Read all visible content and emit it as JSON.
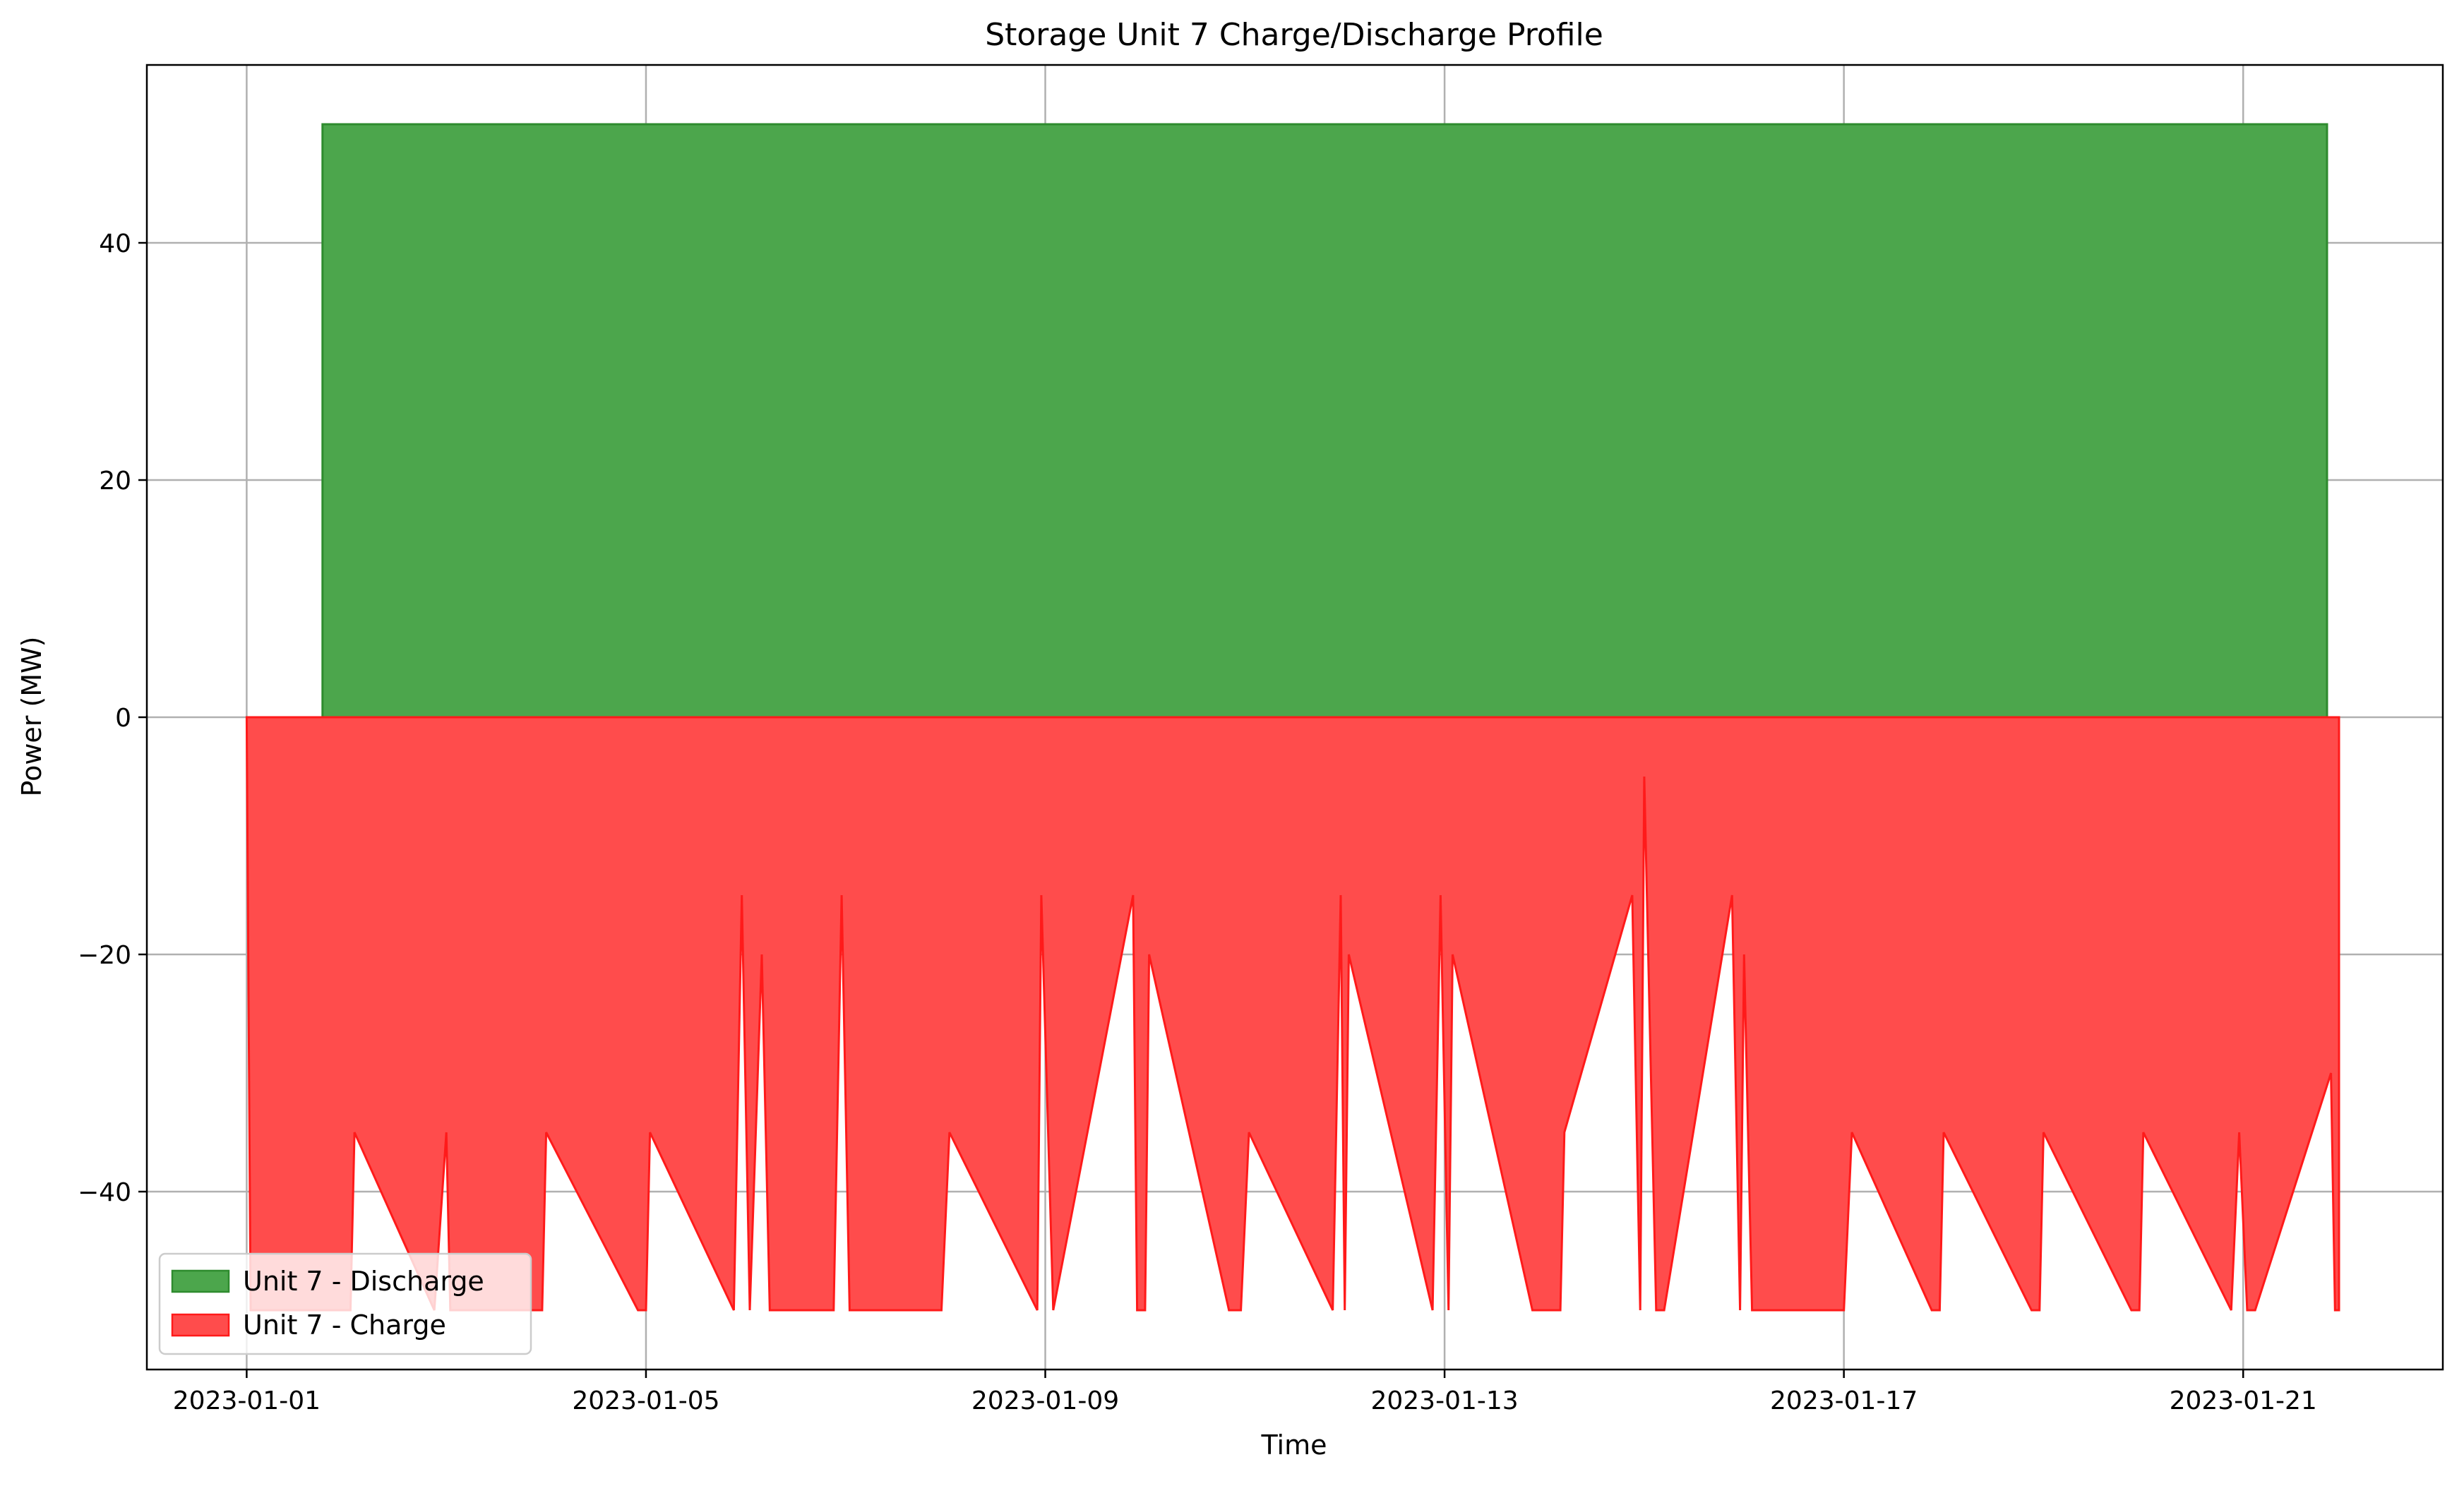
{
  "chart_data": {
    "type": "area",
    "title": "Storage Unit 7 Charge/Discharge Profile",
    "xlabel": "Time",
    "ylabel": "Power (MW)",
    "xlim": [
      -0.25,
      5.5
    ],
    "ylim": [
      -55,
      55
    ],
    "grid": true,
    "legend_position": "lower-left",
    "x_ticks": [
      {
        "value": 0,
        "label": "2023-01-01"
      },
      {
        "value": 1,
        "label": "2023-01-05"
      },
      {
        "value": 2,
        "label": "2023-01-09"
      },
      {
        "value": 3,
        "label": "2023-01-13"
      },
      {
        "value": 4,
        "label": "2023-01-17"
      },
      {
        "value": 5,
        "label": "2023-01-21"
      }
    ],
    "y_ticks": [
      {
        "value": 40,
        "label": "40"
      },
      {
        "value": 20,
        "label": "20"
      },
      {
        "value": 0,
        "label": "0"
      },
      {
        "value": -20,
        "label": "−20"
      },
      {
        "value": -40,
        "label": "−40"
      }
    ],
    "series": [
      {
        "name": "Unit 7 - Discharge",
        "fill": "#4ca64c",
        "stroke": "#2e8b2e",
        "points": [
          [
            0.19,
            0
          ],
          [
            0.19,
            50
          ],
          [
            5.21,
            50
          ],
          [
            5.21,
            0
          ]
        ]
      },
      {
        "name": "Unit 7 - Charge",
        "fill": "#ff4c4c",
        "stroke": "#ff1a1a",
        "points": [
          [
            0.0,
            0
          ],
          [
            0.01,
            -50
          ],
          [
            0.26,
            -50
          ],
          [
            0.27,
            -35
          ],
          [
            0.47,
            -50
          ],
          [
            0.5,
            -35
          ],
          [
            0.51,
            -50
          ],
          [
            0.74,
            -50
          ],
          [
            0.75,
            -35
          ],
          [
            0.98,
            -50
          ],
          [
            1.0,
            -50
          ],
          [
            1.01,
            -35
          ],
          [
            1.22,
            -50
          ],
          [
            1.24,
            -15
          ],
          [
            1.26,
            -50
          ],
          [
            1.29,
            -20
          ],
          [
            1.31,
            -50
          ],
          [
            1.47,
            -50
          ],
          [
            1.49,
            -15
          ],
          [
            1.51,
            -50
          ],
          [
            1.74,
            -50
          ],
          [
            1.76,
            -35
          ],
          [
            1.98,
            -50
          ],
          [
            1.99,
            -15
          ],
          [
            2.02,
            -50
          ],
          [
            2.22,
            -15
          ],
          [
            2.23,
            -50
          ],
          [
            2.25,
            -50
          ],
          [
            2.26,
            -20
          ],
          [
            2.46,
            -50
          ],
          [
            2.49,
            -50
          ],
          [
            2.51,
            -35
          ],
          [
            2.72,
            -50
          ],
          [
            2.74,
            -15
          ],
          [
            2.75,
            -50
          ],
          [
            2.76,
            -20
          ],
          [
            2.97,
            -50
          ],
          [
            2.99,
            -15
          ],
          [
            3.01,
            -50
          ],
          [
            3.02,
            -20
          ],
          [
            3.22,
            -50
          ],
          [
            3.29,
            -50
          ],
          [
            3.3,
            -35
          ],
          [
            3.47,
            -15
          ],
          [
            3.49,
            -50
          ],
          [
            3.5,
            -5
          ],
          [
            3.53,
            -50
          ],
          [
            3.55,
            -50
          ],
          [
            3.72,
            -15
          ],
          [
            3.74,
            -50
          ],
          [
            3.75,
            -20
          ],
          [
            3.77,
            -50
          ],
          [
            4.0,
            -50
          ],
          [
            4.02,
            -35
          ],
          [
            4.22,
            -50
          ],
          [
            4.24,
            -50
          ],
          [
            4.25,
            -35
          ],
          [
            4.47,
            -50
          ],
          [
            4.49,
            -50
          ],
          [
            4.5,
            -35
          ],
          [
            4.72,
            -50
          ],
          [
            4.74,
            -50
          ],
          [
            4.75,
            -35
          ],
          [
            4.97,
            -50
          ],
          [
            4.99,
            -35
          ],
          [
            5.01,
            -50
          ],
          [
            5.03,
            -50
          ],
          [
            5.22,
            -30
          ],
          [
            5.23,
            -50
          ],
          [
            5.24,
            -50
          ],
          [
            5.24,
            0
          ]
        ]
      }
    ]
  }
}
